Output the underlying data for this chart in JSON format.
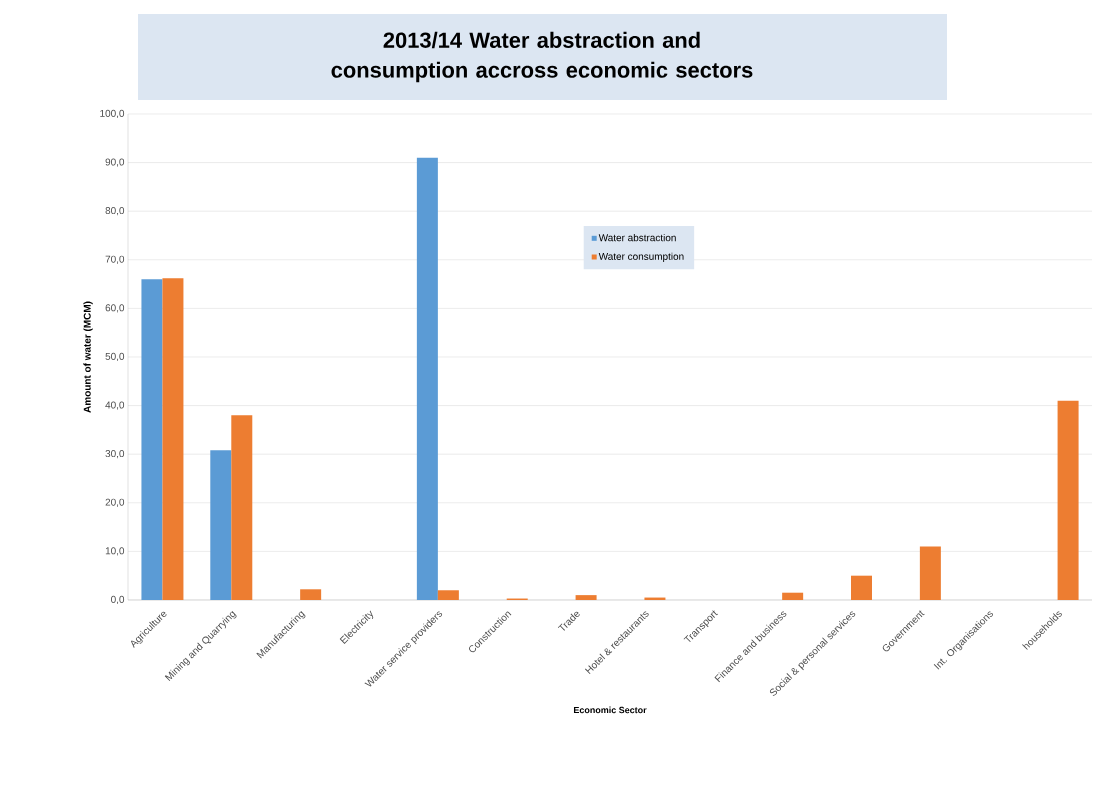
{
  "chart_data": {
    "type": "bar",
    "title": "2013/14 Water abstraction and consumption accross economic sectors",
    "xlabel": "Economic Sector",
    "ylabel": "Amount of water (MCM)",
    "categories": [
      "Agriculture",
      "Mining and Quarrying",
      "Manufacturing",
      "Electricity",
      "Water service providers",
      "Construction",
      "Trade",
      "Hotel & restaurants",
      "Transport",
      "Finance and business",
      "Social & personal services",
      "Government",
      "Int. Organisations",
      "households"
    ],
    "series": [
      {
        "name": "Water abstraction",
        "color": "#5b9bd5",
        "values": [
          66.0,
          30.8,
          null,
          null,
          91.0,
          null,
          null,
          null,
          null,
          null,
          null,
          null,
          null,
          null
        ]
      },
      {
        "name": "Water consumption",
        "color": "#ed7d31",
        "values": [
          66.2,
          38.0,
          2.2,
          null,
          2.0,
          0.3,
          1.0,
          0.5,
          null,
          1.5,
          5.0,
          11.0,
          null,
          41.0
        ]
      }
    ],
    "ylim": [
      0,
      100
    ],
    "yticks": [
      {
        "value": 0,
        "label": "0,0"
      },
      {
        "value": 10,
        "label": "10,0"
      },
      {
        "value": 20,
        "label": "20,0"
      },
      {
        "value": 30,
        "label": "30,0"
      },
      {
        "value": 40,
        "label": "40,0"
      },
      {
        "value": 50,
        "label": "50,0"
      },
      {
        "value": 60,
        "label": "60,0"
      },
      {
        "value": 70,
        "label": "70,0"
      },
      {
        "value": 80,
        "label": "80,0"
      },
      {
        "value": 90,
        "label": "90,0"
      },
      {
        "value": 100,
        "label": "100,0"
      }
    ],
    "grid": "y",
    "legend": "top"
  }
}
